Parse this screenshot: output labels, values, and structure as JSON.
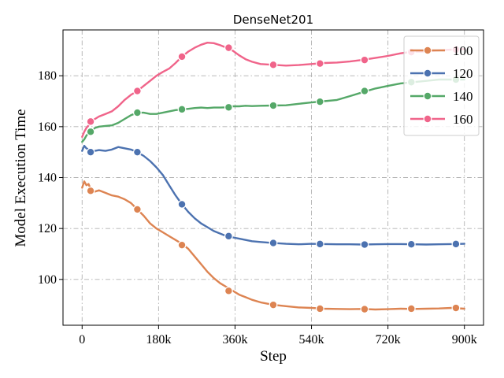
{
  "chart_data": {
    "type": "line",
    "title": "DenseNet201",
    "xlabel": "Step",
    "ylabel": "Model Execution Time",
    "xlim": [
      -45000,
      945000
    ],
    "ylim": [
      82,
      198
    ],
    "xticks": [
      0,
      180000,
      360000,
      540000,
      720000,
      900000
    ],
    "xtick_labels": [
      "0",
      "180k",
      "360k",
      "540k",
      "720k",
      "900k"
    ],
    "yticks": [
      100,
      120,
      140,
      160,
      180
    ],
    "ytick_labels": [
      "100",
      "120",
      "140",
      "160",
      "180"
    ],
    "grid": true,
    "legend_position": "top-right",
    "series": [
      {
        "name": "100",
        "color": "#dd8452",
        "x": [
          0,
          5000,
          10000,
          15000,
          20000,
          30000,
          40000,
          55000,
          70000,
          85000,
          100000,
          115000,
          130000,
          145000,
          160000,
          175000,
          190000,
          205000,
          220000,
          235000,
          250000,
          265000,
          280000,
          295000,
          310000,
          325000,
          340000,
          355000,
          370000,
          385000,
          400000,
          420000,
          450000,
          480000,
          510000,
          540000,
          570000,
          600000,
          630000,
          660000,
          690000,
          720000,
          750000,
          780000,
          810000,
          840000,
          870000,
          900000
        ],
        "y": [
          136,
          138.5,
          137,
          137.5,
          135.5,
          134.5,
          135,
          134,
          133,
          132.5,
          131.5,
          130,
          127.5,
          125,
          122,
          120,
          118.5,
          117,
          115.5,
          114,
          112,
          109,
          106,
          103,
          100.5,
          98.5,
          97,
          95.5,
          94,
          93,
          92,
          91,
          90,
          89.5,
          89,
          88.8,
          88.5,
          88.4,
          88.3,
          88.4,
          88.2,
          88.3,
          88.5,
          88.4,
          88.5,
          88.6,
          88.8,
          88.5
        ],
        "marker_x": [
          20000,
          130000,
          235000,
          345000,
          450000,
          560000,
          665000,
          775000,
          880000
        ],
        "marker_y": [
          134.8,
          127.5,
          113.5,
          95.5,
          90,
          88.5,
          88.3,
          88.5,
          88.8
        ]
      },
      {
        "name": "120",
        "color": "#4c72b0",
        "x": [
          0,
          5000,
          10000,
          15000,
          20000,
          30000,
          40000,
          55000,
          70000,
          85000,
          100000,
          115000,
          130000,
          145000,
          160000,
          175000,
          190000,
          205000,
          220000,
          235000,
          250000,
          265000,
          280000,
          295000,
          310000,
          325000,
          340000,
          355000,
          370000,
          385000,
          400000,
          420000,
          450000,
          480000,
          510000,
          540000,
          570000,
          600000,
          630000,
          660000,
          690000,
          720000,
          750000,
          780000,
          810000,
          840000,
          870000,
          900000
        ],
        "y": [
          150.5,
          152.5,
          151.5,
          151,
          150.3,
          150.5,
          150.8,
          150.5,
          151,
          152,
          151.5,
          151,
          150,
          148.5,
          146.5,
          144,
          141,
          137,
          133,
          129.5,
          126.5,
          124,
          122,
          120.5,
          119,
          118,
          117,
          116.5,
          116,
          115.5,
          115,
          114.7,
          114.3,
          114,
          113.8,
          114,
          113.9,
          113.8,
          113.8,
          113.7,
          113.8,
          113.9,
          113.9,
          113.8,
          113.7,
          113.8,
          113.9,
          114
        ],
        "marker_x": [
          20000,
          130000,
          235000,
          345000,
          450000,
          560000,
          665000,
          775000,
          880000
        ],
        "marker_y": [
          150,
          150,
          129.5,
          117,
          114.3,
          113.9,
          113.7,
          113.8,
          113.9
        ]
      },
      {
        "name": "140",
        "color": "#55a868",
        "x": [
          0,
          5000,
          10000,
          15000,
          20000,
          30000,
          40000,
          55000,
          70000,
          85000,
          100000,
          115000,
          130000,
          145000,
          160000,
          175000,
          190000,
          205000,
          220000,
          235000,
          250000,
          265000,
          280000,
          295000,
          310000,
          325000,
          340000,
          355000,
          370000,
          385000,
          400000,
          420000,
          450000,
          480000,
          510000,
          540000,
          570000,
          600000,
          630000,
          660000,
          690000,
          720000,
          750000,
          780000,
          810000,
          840000,
          870000,
          900000
        ],
        "y": [
          154,
          155,
          156.5,
          157.5,
          158,
          159.5,
          160,
          160.3,
          160.5,
          161.5,
          163,
          164.5,
          165.5,
          165.5,
          165,
          165,
          165.5,
          166,
          166.5,
          166.8,
          167,
          167.3,
          167.5,
          167.3,
          167.5,
          167.5,
          167.6,
          168,
          168,
          168.2,
          168.1,
          168.2,
          168.3,
          168.4,
          169,
          169.5,
          170,
          170.5,
          172,
          173.5,
          175,
          176,
          177,
          177.5,
          178,
          178.5,
          178.5,
          178.5
        ],
        "marker_x": [
          20000,
          130000,
          235000,
          345000,
          450000,
          560000,
          665000,
          775000,
          880000
        ],
        "marker_y": [
          158,
          165.5,
          166.8,
          167.6,
          168.3,
          169.8,
          174,
          177.5,
          178.5
        ]
      },
      {
        "name": "160",
        "color": "#f0648a",
        "x": [
          0,
          5000,
          10000,
          15000,
          20000,
          30000,
          40000,
          55000,
          70000,
          85000,
          100000,
          115000,
          130000,
          145000,
          160000,
          175000,
          190000,
          205000,
          220000,
          235000,
          250000,
          265000,
          280000,
          295000,
          310000,
          325000,
          340000,
          355000,
          370000,
          385000,
          400000,
          420000,
          450000,
          480000,
          510000,
          540000,
          570000,
          600000,
          630000,
          660000,
          690000,
          720000,
          750000,
          780000,
          810000,
          840000,
          870000,
          900000
        ],
        "y": [
          156,
          158,
          159.5,
          160.5,
          162,
          163,
          164,
          165,
          166,
          168,
          170.5,
          172.5,
          174,
          176,
          178,
          180,
          181.5,
          182.8,
          185,
          187.5,
          189.5,
          191,
          192.2,
          193,
          192.8,
          192,
          191,
          189.8,
          188,
          186.5,
          185.5,
          184.6,
          184.3,
          184,
          184.2,
          184.6,
          185,
          185.2,
          185.6,
          186.2,
          187,
          187.8,
          188.8,
          189.5,
          189.5,
          190,
          190.3,
          190.5
        ],
        "marker_x": [
          20000,
          130000,
          235000,
          345000,
          450000,
          560000,
          665000,
          775000,
          880000
        ],
        "marker_y": [
          162,
          174,
          187.5,
          191,
          184.3,
          184.8,
          186.2,
          189.3,
          190.3
        ]
      }
    ]
  }
}
